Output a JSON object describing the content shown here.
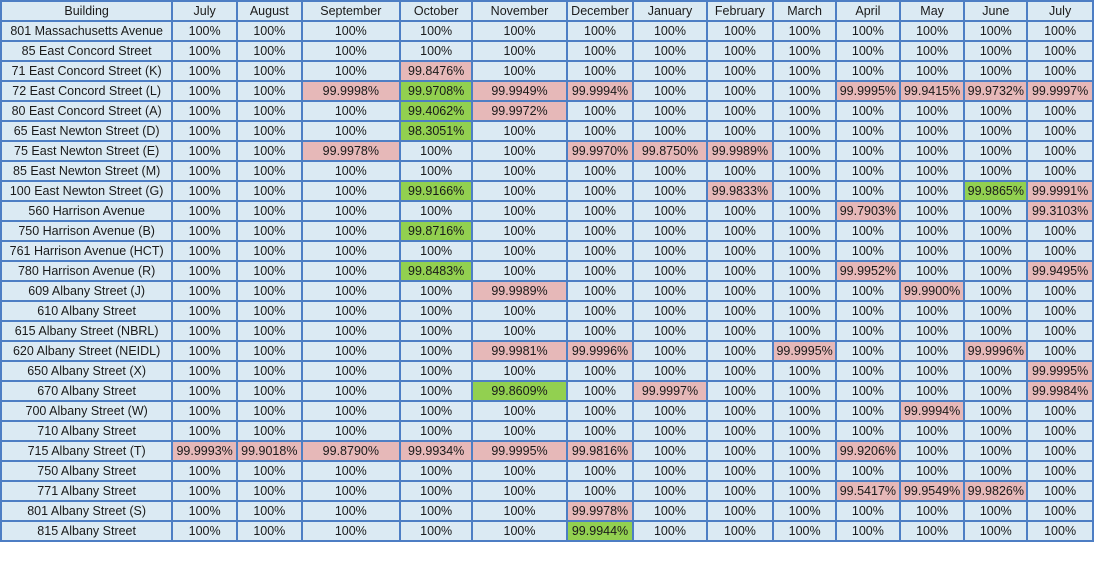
{
  "table": {
    "headers": [
      "Building",
      "July",
      "August",
      "September",
      "October",
      "November",
      "December",
      "January",
      "February",
      "March",
      "April",
      "May",
      "June",
      "July"
    ],
    "rows": [
      {
        "building": "801 Massachusetts Avenue",
        "values": [
          "100%",
          "100%",
          "100%",
          "100%",
          "100%",
          "100%",
          "100%",
          "100%",
          "100%",
          "100%",
          "100%",
          "100%",
          "100%"
        ],
        "highlights": [
          "",
          "",
          "",
          "",
          "",
          "",
          "",
          "",
          "",
          "",
          "",
          "",
          ""
        ]
      },
      {
        "building": "85 East Concord Street",
        "values": [
          "100%",
          "100%",
          "100%",
          "100%",
          "100%",
          "100%",
          "100%",
          "100%",
          "100%",
          "100%",
          "100%",
          "100%",
          "100%"
        ],
        "highlights": [
          "",
          "",
          "",
          "",
          "",
          "",
          "",
          "",
          "",
          "",
          "",
          "",
          ""
        ]
      },
      {
        "building": "71 East Concord Street (K)",
        "values": [
          "100%",
          "100%",
          "100%",
          "99.8476%",
          "100%",
          "100%",
          "100%",
          "100%",
          "100%",
          "100%",
          "100%",
          "100%",
          "100%"
        ],
        "highlights": [
          "",
          "",
          "",
          "red",
          "",
          "",
          "",
          "",
          "",
          "",
          "",
          "",
          ""
        ]
      },
      {
        "building": "72 East Concord Street (L)",
        "values": [
          "100%",
          "100%",
          "99.9998%",
          "99.9708%",
          "99.9949%",
          "99.9994%",
          "100%",
          "100%",
          "100%",
          "99.9995%",
          "99.9415%",
          "99.9732%",
          "99.9997%"
        ],
        "highlights": [
          "",
          "",
          "red",
          "green",
          "red",
          "red",
          "",
          "",
          "",
          "red",
          "red",
          "red",
          "red"
        ]
      },
      {
        "building": "80 East Concord Street (A)",
        "values": [
          "100%",
          "100%",
          "100%",
          "99.4062%",
          "99.9972%",
          "100%",
          "100%",
          "100%",
          "100%",
          "100%",
          "100%",
          "100%",
          "100%"
        ],
        "highlights": [
          "",
          "",
          "",
          "green",
          "red",
          "",
          "",
          "",
          "",
          "",
          "",
          "",
          ""
        ]
      },
      {
        "building": "65 East Newton Street (D)",
        "values": [
          "100%",
          "100%",
          "100%",
          "98.3051%",
          "100%",
          "100%",
          "100%",
          "100%",
          "100%",
          "100%",
          "100%",
          "100%",
          "100%"
        ],
        "highlights": [
          "",
          "",
          "",
          "green",
          "",
          "",
          "",
          "",
          "",
          "",
          "",
          "",
          ""
        ]
      },
      {
        "building": "75 East Newton Street (E)",
        "values": [
          "100%",
          "100%",
          "99.9978%",
          "100%",
          "100%",
          "99.9970%",
          "99.8750%",
          "99.9989%",
          "100%",
          "100%",
          "100%",
          "100%",
          "100%"
        ],
        "highlights": [
          "",
          "",
          "red",
          "",
          "",
          "red",
          "red",
          "red",
          "",
          "",
          "",
          "",
          ""
        ]
      },
      {
        "building": "85 East Newton Street (M)",
        "values": [
          "100%",
          "100%",
          "100%",
          "100%",
          "100%",
          "100%",
          "100%",
          "100%",
          "100%",
          "100%",
          "100%",
          "100%",
          "100%"
        ],
        "highlights": [
          "",
          "",
          "",
          "",
          "",
          "",
          "",
          "",
          "",
          "",
          "",
          "",
          ""
        ]
      },
      {
        "building": "100 East Newton Street (G)",
        "values": [
          "100%",
          "100%",
          "100%",
          "99.9166%",
          "100%",
          "100%",
          "100%",
          "99.9833%",
          "100%",
          "100%",
          "100%",
          "99.9865%",
          "99.9991%"
        ],
        "highlights": [
          "",
          "",
          "",
          "green",
          "",
          "",
          "",
          "red",
          "",
          "",
          "",
          "green",
          "red"
        ]
      },
      {
        "building": "560 Harrison Avenue",
        "values": [
          "100%",
          "100%",
          "100%",
          "100%",
          "100%",
          "100%",
          "100%",
          "100%",
          "100%",
          "99.7903%",
          "100%",
          "100%",
          "99.3103%"
        ],
        "highlights": [
          "",
          "",
          "",
          "",
          "",
          "",
          "",
          "",
          "",
          "red",
          "",
          "",
          "red"
        ]
      },
      {
        "building": "750 Harrison Avenue (B)",
        "values": [
          "100%",
          "100%",
          "100%",
          "99.8716%",
          "100%",
          "100%",
          "100%",
          "100%",
          "100%",
          "100%",
          "100%",
          "100%",
          "100%"
        ],
        "highlights": [
          "",
          "",
          "",
          "green",
          "",
          "",
          "",
          "",
          "",
          "",
          "",
          "",
          ""
        ]
      },
      {
        "building": "761 Harrison Avenue (HCT)",
        "values": [
          "100%",
          "100%",
          "100%",
          "100%",
          "100%",
          "100%",
          "100%",
          "100%",
          "100%",
          "100%",
          "100%",
          "100%",
          "100%"
        ],
        "highlights": [
          "",
          "",
          "",
          "",
          "",
          "",
          "",
          "",
          "",
          "",
          "",
          "",
          ""
        ]
      },
      {
        "building": "780 Harrison Avenue (R)",
        "values": [
          "100%",
          "100%",
          "100%",
          "99.8483%",
          "100%",
          "100%",
          "100%",
          "100%",
          "100%",
          "99.9952%",
          "100%",
          "100%",
          "99.9495%"
        ],
        "highlights": [
          "",
          "",
          "",
          "green",
          "",
          "",
          "",
          "",
          "",
          "red",
          "",
          "",
          "red"
        ]
      },
      {
        "building": "609 Albany Street (J)",
        "values": [
          "100%",
          "100%",
          "100%",
          "100%",
          "99.9989%",
          "100%",
          "100%",
          "100%",
          "100%",
          "100%",
          "99.9900%",
          "100%",
          "100%"
        ],
        "highlights": [
          "",
          "",
          "",
          "",
          "red",
          "",
          "",
          "",
          "",
          "",
          "red",
          "",
          ""
        ]
      },
      {
        "building": "610 Albany Street",
        "values": [
          "100%",
          "100%",
          "100%",
          "100%",
          "100%",
          "100%",
          "100%",
          "100%",
          "100%",
          "100%",
          "100%",
          "100%",
          "100%"
        ],
        "highlights": [
          "",
          "",
          "",
          "",
          "",
          "",
          "",
          "",
          "",
          "",
          "",
          "",
          ""
        ]
      },
      {
        "building": "615 Albany Street (NBRL)",
        "values": [
          "100%",
          "100%",
          "100%",
          "100%",
          "100%",
          "100%",
          "100%",
          "100%",
          "100%",
          "100%",
          "100%",
          "100%",
          "100%"
        ],
        "highlights": [
          "",
          "",
          "",
          "",
          "",
          "",
          "",
          "",
          "",
          "",
          "",
          "",
          ""
        ]
      },
      {
        "building": "620 Albany Street (NEIDL)",
        "values": [
          "100%",
          "100%",
          "100%",
          "100%",
          "99.9981%",
          "99.9996%",
          "100%",
          "100%",
          "99.9995%",
          "100%",
          "100%",
          "99.9996%",
          "100%"
        ],
        "highlights": [
          "",
          "",
          "",
          "",
          "red",
          "red",
          "",
          "",
          "red",
          "",
          "",
          "red",
          ""
        ]
      },
      {
        "building": "650 Albany Street (X)",
        "values": [
          "100%",
          "100%",
          "100%",
          "100%",
          "100%",
          "100%",
          "100%",
          "100%",
          "100%",
          "100%",
          "100%",
          "100%",
          "99.9995%"
        ],
        "highlights": [
          "",
          "",
          "",
          "",
          "",
          "",
          "",
          "",
          "",
          "",
          "",
          "",
          "red"
        ]
      },
      {
        "building": "670 Albany Street",
        "values": [
          "100%",
          "100%",
          "100%",
          "100%",
          "99.8609%",
          "100%",
          "99.9997%",
          "100%",
          "100%",
          "100%",
          "100%",
          "100%",
          "99.9984%"
        ],
        "highlights": [
          "",
          "",
          "",
          "",
          "green",
          "",
          "red",
          "",
          "",
          "",
          "",
          "",
          "red"
        ]
      },
      {
        "building": "700 Albany Street (W)",
        "values": [
          "100%",
          "100%",
          "100%",
          "100%",
          "100%",
          "100%",
          "100%",
          "100%",
          "100%",
          "100%",
          "99.9994%",
          "100%",
          "100%"
        ],
        "highlights": [
          "",
          "",
          "",
          "",
          "",
          "",
          "",
          "",
          "",
          "",
          "red",
          "",
          ""
        ]
      },
      {
        "building": "710 Albany Street",
        "values": [
          "100%",
          "100%",
          "100%",
          "100%",
          "100%",
          "100%",
          "100%",
          "100%",
          "100%",
          "100%",
          "100%",
          "100%",
          "100%"
        ],
        "highlights": [
          "",
          "",
          "",
          "",
          "",
          "",
          "",
          "",
          "",
          "",
          "",
          "",
          ""
        ]
      },
      {
        "building": "715 Albany Street (T)",
        "values": [
          "99.9993%",
          "99.9018%",
          "99.8790%",
          "99.9934%",
          "99.9995%",
          "99.9816%",
          "100%",
          "100%",
          "100%",
          "99.9206%",
          "100%",
          "100%",
          "100%"
        ],
        "highlights": [
          "red",
          "red",
          "red",
          "red",
          "red",
          "red",
          "",
          "",
          "",
          "red",
          "",
          "",
          ""
        ]
      },
      {
        "building": "750 Albany Street",
        "values": [
          "100%",
          "100%",
          "100%",
          "100%",
          "100%",
          "100%",
          "100%",
          "100%",
          "100%",
          "100%",
          "100%",
          "100%",
          "100%"
        ],
        "highlights": [
          "",
          "",
          "",
          "",
          "",
          "",
          "",
          "",
          "",
          "",
          "",
          "",
          ""
        ]
      },
      {
        "building": "771 Albany Street",
        "values": [
          "100%",
          "100%",
          "100%",
          "100%",
          "100%",
          "100%",
          "100%",
          "100%",
          "100%",
          "99.5417%",
          "99.9549%",
          "99.9826%",
          "100%"
        ],
        "highlights": [
          "",
          "",
          "",
          "",
          "",
          "",
          "",
          "",
          "",
          "red",
          "red",
          "red",
          ""
        ]
      },
      {
        "building": "801 Albany Street (S)",
        "values": [
          "100%",
          "100%",
          "100%",
          "100%",
          "100%",
          "99.9978%",
          "100%",
          "100%",
          "100%",
          "100%",
          "100%",
          "100%",
          "100%"
        ],
        "highlights": [
          "",
          "",
          "",
          "",
          "",
          "red",
          "",
          "",
          "",
          "",
          "",
          "",
          ""
        ]
      },
      {
        "building": "815 Albany Street",
        "values": [
          "100%",
          "100%",
          "100%",
          "100%",
          "100%",
          "99.9944%",
          "100%",
          "100%",
          "100%",
          "100%",
          "100%",
          "100%",
          "100%"
        ],
        "highlights": [
          "",
          "",
          "",
          "",
          "",
          "green",
          "",
          "",
          "",
          "",
          "",
          "",
          ""
        ]
      }
    ]
  },
  "colors": {
    "cell_background": "#dbeaf3",
    "grid_line": "#4d7ec4",
    "highlight_red": "#e6b8b8",
    "highlight_green": "#92d050"
  }
}
